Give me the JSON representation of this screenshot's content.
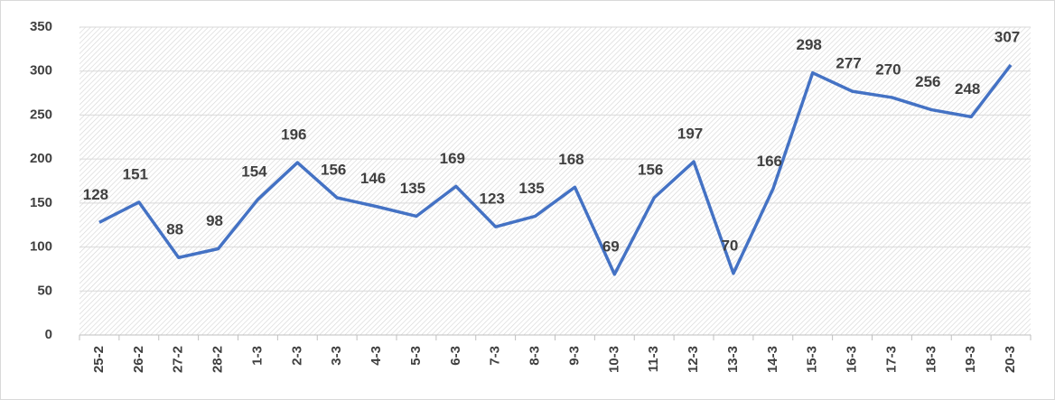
{
  "chart_data": {
    "type": "line",
    "categories": [
      "25-2",
      "26-2",
      "27-2",
      "28-2",
      "1-3",
      "2-3",
      "3-3",
      "4-3",
      "5-3",
      "6-3",
      "7-3",
      "8-3",
      "9-3",
      "10-3",
      "11-3",
      "12-3",
      "13-3",
      "14-3",
      "15-3",
      "16-3",
      "17-3",
      "18-3",
      "19-3",
      "20-3"
    ],
    "values": [
      128,
      151,
      88,
      98,
      154,
      196,
      156,
      146,
      135,
      169,
      123,
      135,
      168,
      69,
      156,
      197,
      70,
      166,
      298,
      277,
      270,
      256,
      248,
      307
    ],
    "color": "#4472c4",
    "ylim": [
      0,
      350
    ],
    "yticks": [
      0,
      50,
      100,
      150,
      200,
      250,
      300,
      350
    ],
    "grid": true
  }
}
